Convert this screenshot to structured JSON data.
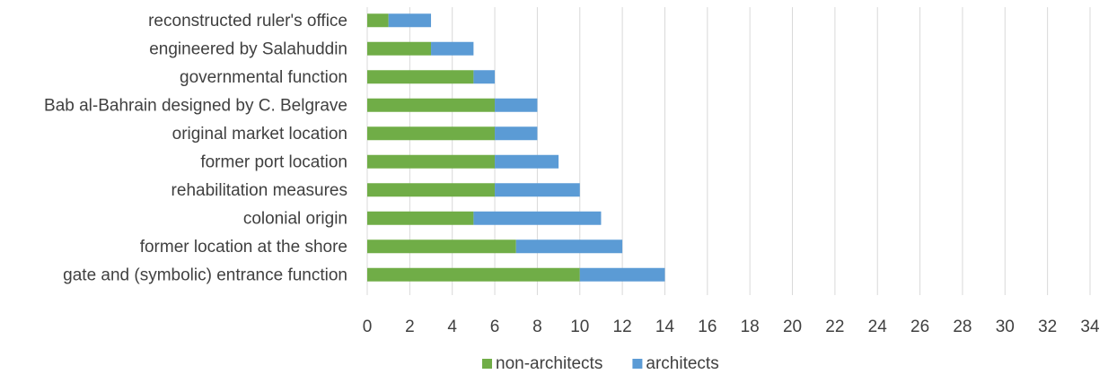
{
  "chart_data": {
    "type": "bar",
    "orientation": "horizontal",
    "stacked": true,
    "categories": [
      "gate and (symbolic) entrance function",
      "former location at the shore",
      "colonial origin",
      "rehabilitation measures",
      "former port location",
      "original market location",
      "Bab al-Bahrain designed by C. Belgrave",
      "governmental function",
      "engineered by Salahuddin",
      "reconstructed ruler's office"
    ],
    "series": [
      {
        "name": "non-architects",
        "color": "#70ad47",
        "values": [
          10,
          7,
          5,
          6,
          6,
          6,
          6,
          5,
          3,
          1
        ]
      },
      {
        "name": "architects",
        "color": "#5b9bd5",
        "values": [
          4,
          5,
          6,
          4,
          3,
          2,
          2,
          1,
          2,
          2
        ]
      }
    ],
    "xlim": [
      0,
      34
    ],
    "xticks": [
      "0",
      "2",
      "4",
      "6",
      "8",
      "10",
      "12",
      "14",
      "16",
      "18",
      "20",
      "22",
      "24",
      "26",
      "28",
      "30",
      "32",
      "34"
    ],
    "grid": true,
    "legend": "bottom",
    "title": "",
    "xlabel": "",
    "ylabel": ""
  }
}
